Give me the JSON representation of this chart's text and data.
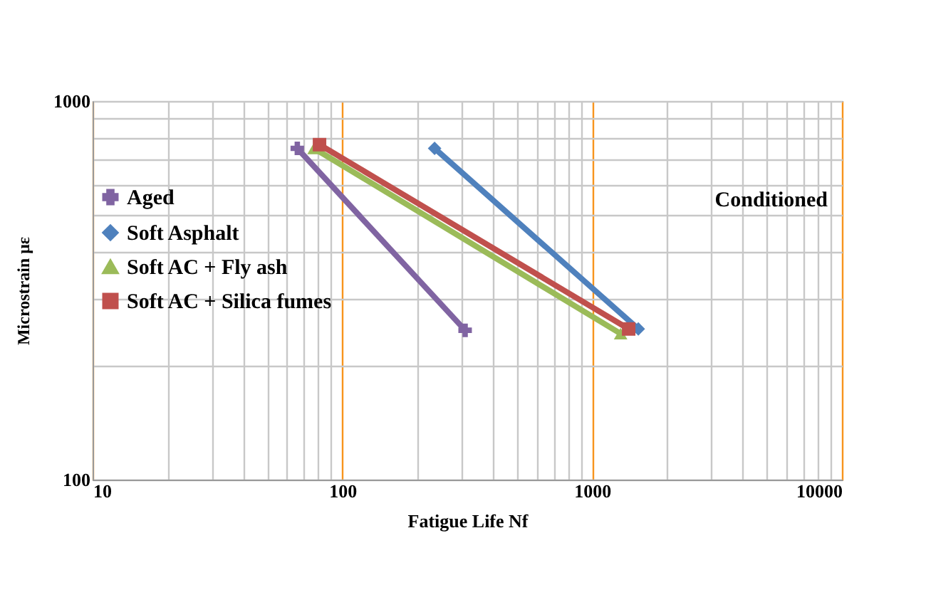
{
  "chart_data": {
    "type": "line",
    "xlabel": "Fatigue Life Nf",
    "ylabel": "Microstrain με",
    "log": "xy",
    "xlim": [
      10,
      10000
    ],
    "xticks": [
      10,
      100,
      1000,
      10000
    ],
    "ylim": [
      100,
      1000
    ],
    "yticks": [
      100,
      1000
    ],
    "grid": true,
    "legend": "top left",
    "annotations": [
      "Conditioned"
    ],
    "series": [
      {
        "name": "Aged",
        "color": "#8064a2",
        "marker": "cross",
        "x": [
          66,
          310
        ],
        "values": [
          750,
          248
        ]
      },
      {
        "name": "Soft Asphalt",
        "color": "#4f81bd",
        "marker": "diamond",
        "x": [
          234,
          1530
        ],
        "values": [
          750,
          250
        ]
      },
      {
        "name": "Soft AC + Fly ash",
        "color": "#9bbb59",
        "marker": "triangle",
        "x": [
          77,
          1300
        ],
        "values": [
          750,
          243
        ]
      },
      {
        "name": "Soft AC + Silica fumes",
        "color": "#c0504d",
        "marker": "square",
        "x": [
          81,
          1400
        ],
        "values": [
          767,
          250
        ]
      }
    ]
  }
}
